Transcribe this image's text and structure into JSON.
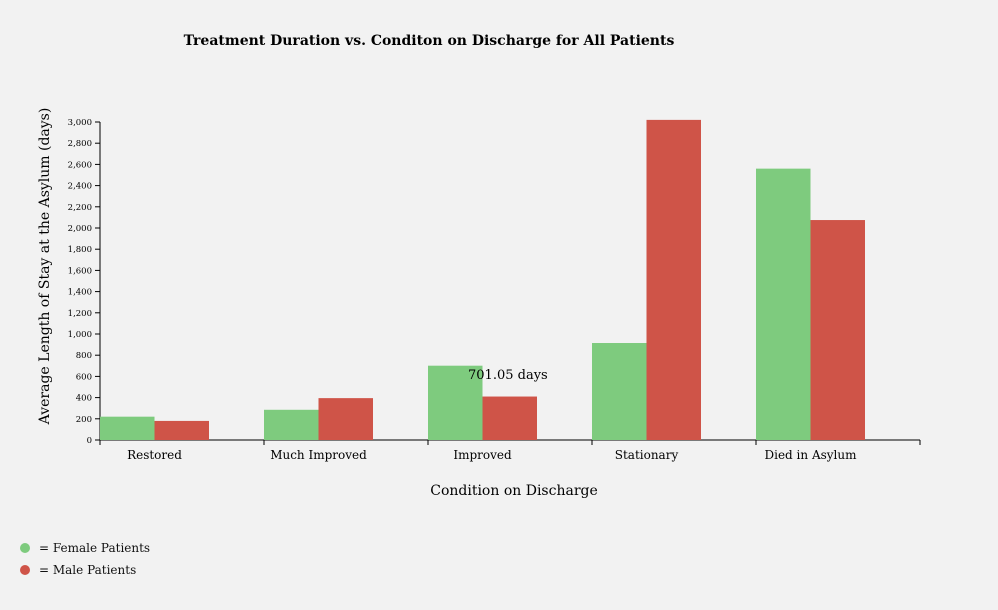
{
  "chart_data": {
    "type": "bar",
    "title": "Treatment Duration vs. Conditon on Discharge for All Patients",
    "xlabel": "Condition on Discharge",
    "ylabel": "Average Length of Stay at the Asylum (days)",
    "categories": [
      "Restored",
      "Much Improved",
      "Improved",
      "Stationary",
      "Died in Asylum"
    ],
    "series": [
      {
        "name": "Female Patients",
        "color": "#7ecb7e",
        "values": [
          220,
          285,
          701.05,
          915,
          2560
        ]
      },
      {
        "name": "Male Patients",
        "color": "#cf5448",
        "values": [
          180,
          395,
          410,
          3020,
          2075
        ]
      }
    ],
    "ylim": [
      0,
      3000
    ],
    "yticks": [
      "0",
      "200",
      "400",
      "600",
      "800",
      "1,000",
      "1,200",
      "1,400",
      "1,600",
      "1,800",
      "2,000",
      "2,200",
      "2,400",
      "2,600",
      "2,800",
      "3,000"
    ],
    "annotation": "701.05 days",
    "grid": false
  },
  "legend": {
    "items": [
      {
        "label": "= Female Patients",
        "color": "#7ecb7e"
      },
      {
        "label": "= Male Patients",
        "color": "#cf5448"
      }
    ]
  }
}
